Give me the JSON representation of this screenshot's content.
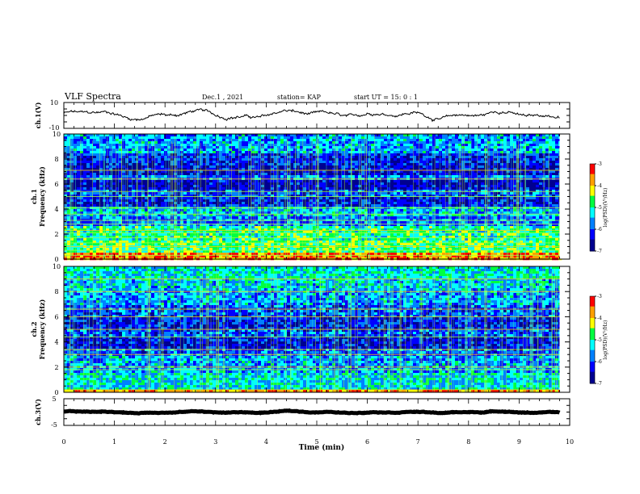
{
  "header": {
    "title": "VLF Spectra",
    "date": "Dec.1 , 2021",
    "station": "station= KAP",
    "start": "start  UT =   15: 0  : 1"
  },
  "colorbar": {
    "label": "log(PSD)(V²/Hz)",
    "ticks": [
      "-3",
      "-4",
      "-5",
      "-6",
      "-7"
    ],
    "colors": [
      "#ff0000",
      "#ffa000",
      "#ffff00",
      "#00ff40",
      "#00ffff",
      "#0080ff",
      "#0000ff",
      "#000090"
    ]
  },
  "chart_data": [
    {
      "type": "line",
      "ylabel": "ch.1(V)",
      "ylim": [
        -10,
        10
      ],
      "yticks": [
        "10",
        "-10"
      ],
      "xlim": [
        0,
        10
      ],
      "x_start": 0,
      "x_end": 9.8,
      "mean": 0.5,
      "amplitude": 3.5
    },
    {
      "type": "heatmap",
      "ylabel": "ch.1\nFrequency (kHz)",
      "ylim": [
        0,
        10
      ],
      "yticks": [
        "0",
        "2",
        "4",
        "6",
        "8",
        "10"
      ],
      "xlim": [
        0,
        9.8
      ],
      "bands": [
        {
          "f0": 0,
          "f1": 0.5,
          "level": -3.6
        },
        {
          "f0": 0.5,
          "f1": 1.5,
          "level": -4.8
        },
        {
          "f0": 1.5,
          "f1": 2.6,
          "level": -5.0
        },
        {
          "f0": 2.6,
          "f1": 3.4,
          "level": -5.8
        },
        {
          "f0": 3.4,
          "f1": 4.2,
          "level": -5.5
        },
        {
          "f0": 4.2,
          "f1": 5.0,
          "level": -6.3
        },
        {
          "f0": 5.0,
          "f1": 5.6,
          "level": -6.0
        },
        {
          "f0": 5.6,
          "f1": 6.3,
          "level": -6.6
        },
        {
          "f0": 6.3,
          "f1": 6.8,
          "level": -5.8
        },
        {
          "f0": 6.8,
          "f1": 7.5,
          "level": -6.5
        },
        {
          "f0": 7.5,
          "f1": 8.5,
          "level": -6.2
        },
        {
          "f0": 8.5,
          "f1": 10,
          "level": -5.6
        }
      ],
      "lines_khz": [
        0.3,
        0.7,
        1.0,
        1.3,
        1.7,
        2.1,
        2.3,
        2.8,
        3.1,
        3.6,
        4.1,
        5.0,
        5.4,
        6.4,
        7.1
      ]
    },
    {
      "type": "heatmap",
      "ylabel": "ch.2\nFrequency (kHz)",
      "ylim": [
        0,
        10
      ],
      "yticks": [
        "0",
        "2",
        "4",
        "6",
        "8",
        "10"
      ],
      "xlim": [
        0,
        9.8
      ],
      "bands": [
        {
          "f0": 0,
          "f1": 0.2,
          "level": -3.6
        },
        {
          "f0": 0.2,
          "f1": 1.6,
          "level": -5.3
        },
        {
          "f0": 1.6,
          "f1": 2.8,
          "level": -5.6
        },
        {
          "f0": 2.8,
          "f1": 3.4,
          "level": -5.9
        },
        {
          "f0": 3.4,
          "f1": 4.4,
          "level": -6.4
        },
        {
          "f0": 4.4,
          "f1": 5.0,
          "level": -6.0
        },
        {
          "f0": 5.0,
          "f1": 6.0,
          "level": -6.3
        },
        {
          "f0": 6.0,
          "f1": 7.0,
          "level": -6.0
        },
        {
          "f0": 7.0,
          "f1": 8.0,
          "level": -5.6
        },
        {
          "f0": 8.0,
          "f1": 9.0,
          "level": -5.4
        },
        {
          "f0": 9.0,
          "f1": 10,
          "level": -5.2
        }
      ],
      "lines_khz": [
        0.2,
        1.8,
        2.0,
        3.0,
        3.4,
        4.4,
        5.0,
        6.0,
        6.6,
        8.0,
        9.0
      ]
    },
    {
      "type": "line",
      "ylabel": "ch.3(V)",
      "ylim": [
        -5,
        5
      ],
      "yticks": [
        "5",
        "-5"
      ],
      "xlim": [
        0,
        10
      ],
      "x_start": 0,
      "x_end": 9.8,
      "mean": 0,
      "amplitude": 0.4
    }
  ],
  "xaxis": {
    "label": "Time  (min)",
    "ticks": [
      "0",
      "1",
      "2",
      "3",
      "4",
      "5",
      "6",
      "7",
      "8",
      "9",
      "10"
    ]
  }
}
